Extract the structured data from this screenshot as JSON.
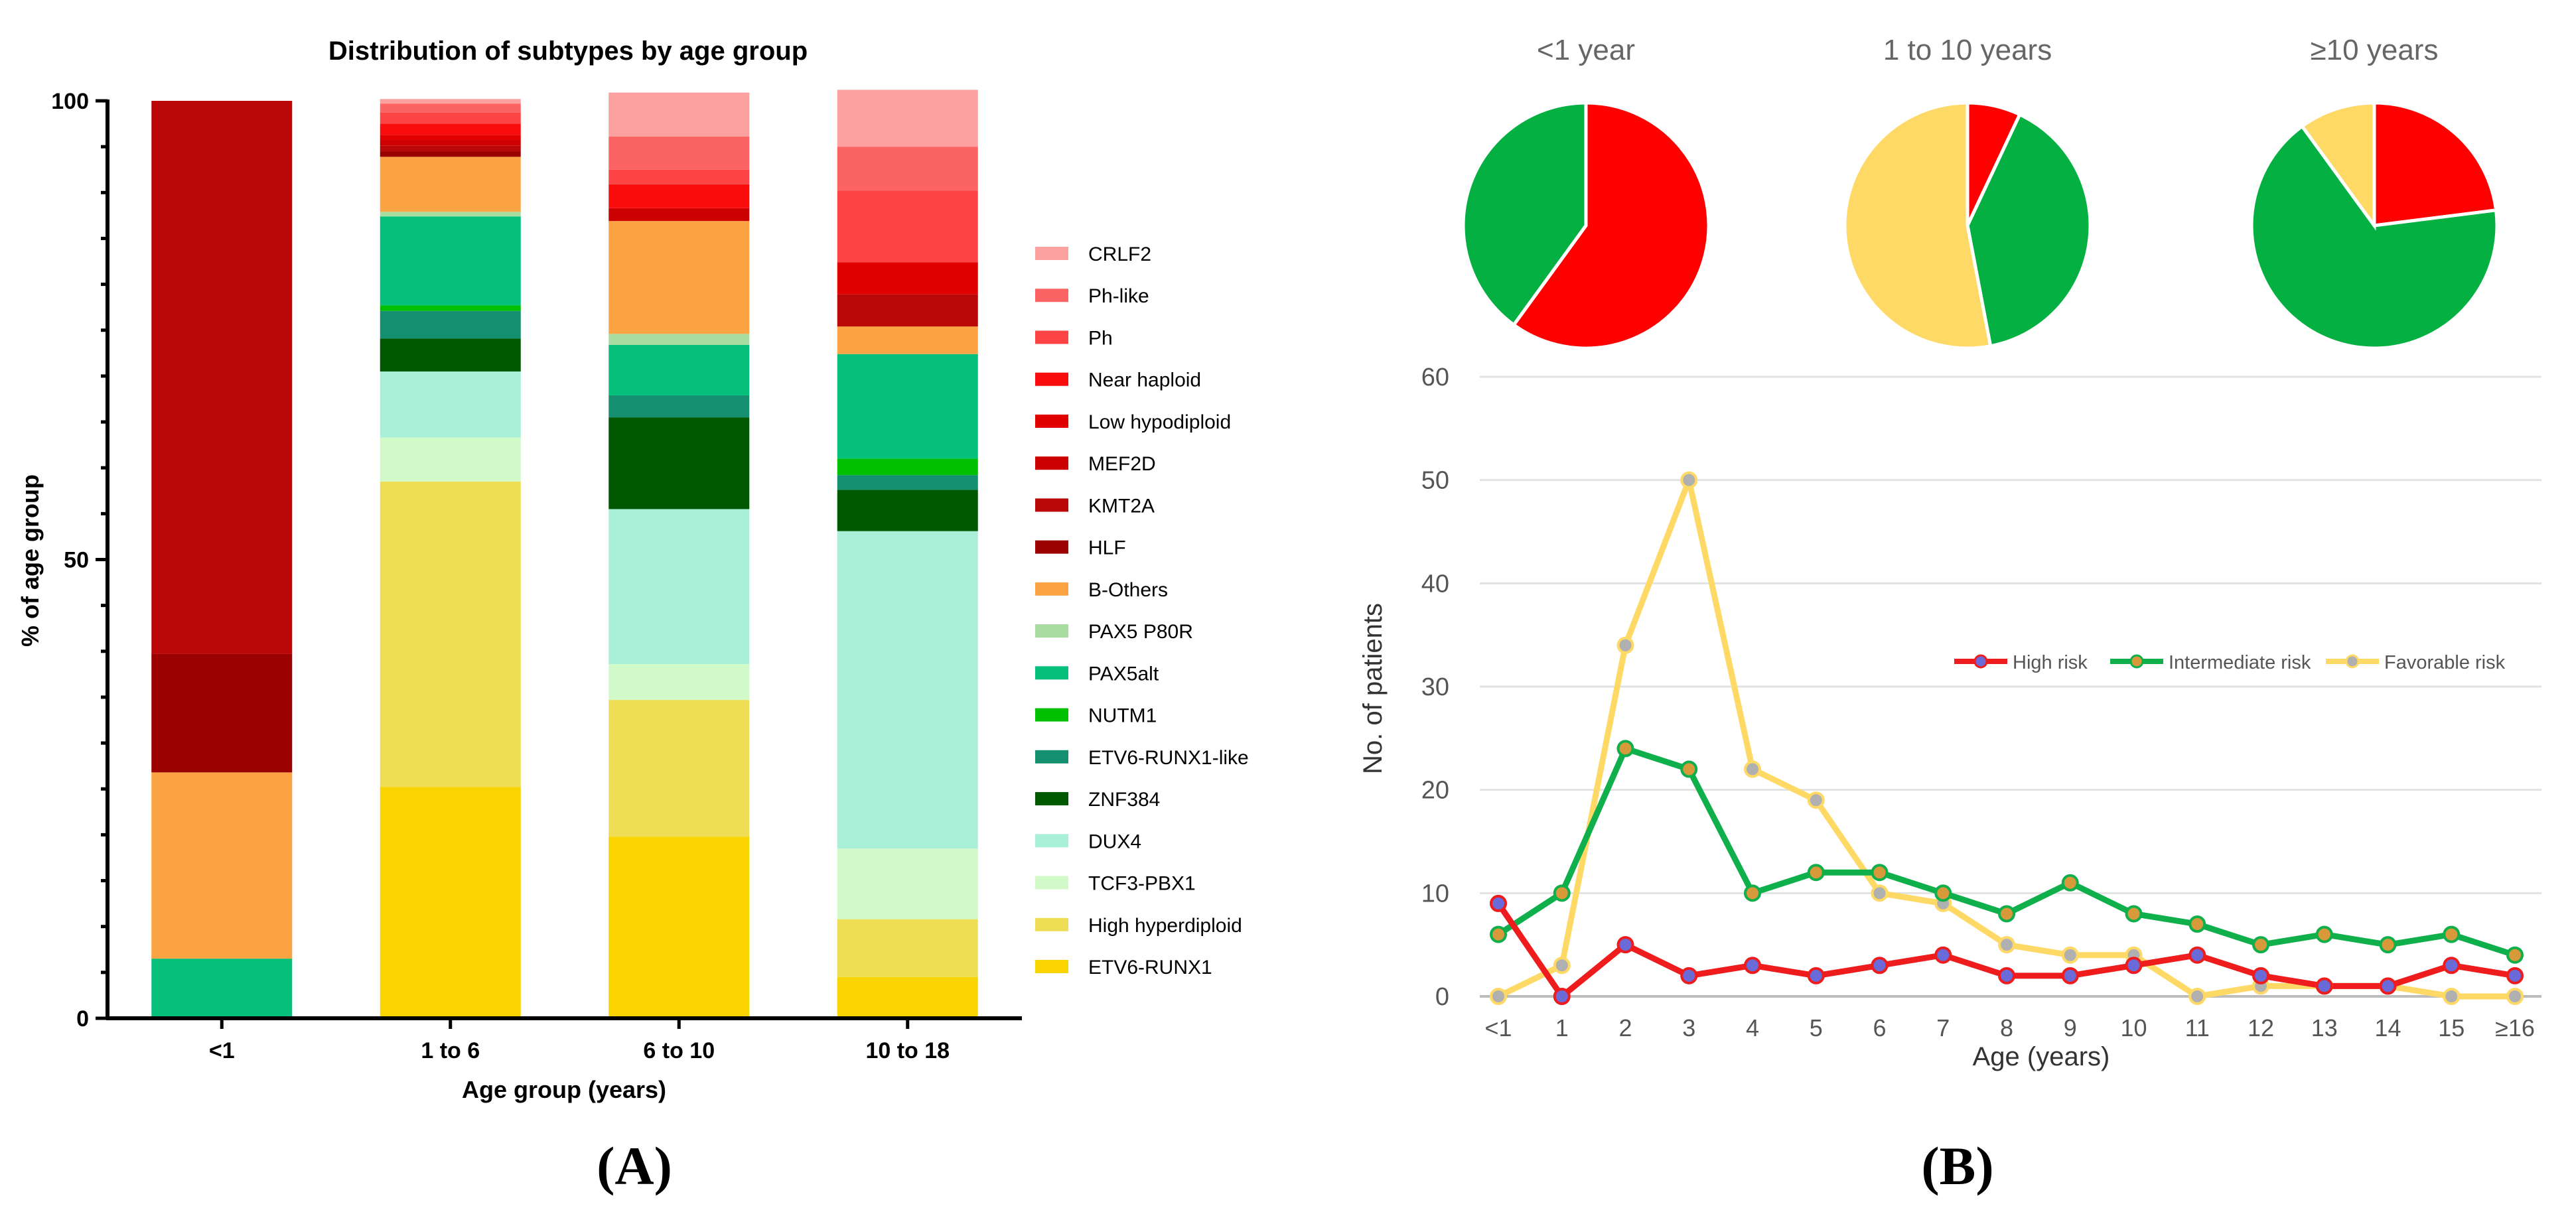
{
  "figure": {
    "panel_labels": [
      "(A)",
      "(B)"
    ]
  },
  "chart_data": [
    {
      "type": "bar",
      "stacked": true,
      "title": "Distribution of subtypes by age group",
      "xlabel": "Age group (years)",
      "ylabel": "% of age group",
      "ylim": [
        0,
        100
      ],
      "yticks": [
        0,
        50,
        100
      ],
      "categories": [
        "<1",
        "1 to 6",
        "6 to 10",
        "10 to 18"
      ],
      "legend_position": "right",
      "series": [
        {
          "name": "ETV6-RUNX1",
          "color": "#F9D400",
          "values": [
            0,
            25.2,
            19.8,
            4.5
          ]
        },
        {
          "name": "High hyperdiploid",
          "color": "#EEDD55",
          "values": [
            0,
            33.3,
            14.9,
            6.3
          ]
        },
        {
          "name": "TCF3-PBX1",
          "color": "#D2FAC8",
          "values": [
            0,
            4.8,
            3.9,
            7.7
          ]
        },
        {
          "name": "DUX4",
          "color": "#A8F0D8",
          "values": [
            0,
            7.2,
            16.9,
            34.6
          ]
        },
        {
          "name": "ZNF384",
          "color": "#005800",
          "values": [
            0,
            3.6,
            10.0,
            4.5
          ]
        },
        {
          "name": "ETV6-RUNX1-like",
          "color": "#149070",
          "values": [
            0,
            3.0,
            2.4,
            1.6
          ]
        },
        {
          "name": "NUTM1",
          "color": "#00C000",
          "values": [
            0,
            0.6,
            0,
            1.8
          ]
        },
        {
          "name": "PAX5alt",
          "color": "#05C07A",
          "values": [
            6.5,
            9.7,
            5.5,
            11.4
          ]
        },
        {
          "name": "PAX5 P80R",
          "color": "#A8DCA0",
          "values": [
            0,
            0.5,
            1.2,
            0
          ]
        },
        {
          "name": "B-Others",
          "color": "#FCA444",
          "values": [
            20.3,
            6.0,
            12.3,
            3.0
          ]
        },
        {
          "name": "HLF",
          "color": "#9A0000",
          "values": [
            12.9,
            0.6,
            0,
            0
          ]
        },
        {
          "name": "KMT2A",
          "color": "#BA0808",
          "values": [
            60.3,
            0.6,
            0,
            3.5
          ]
        },
        {
          "name": "MEF2D",
          "color": "#CC0000",
          "values": [
            0,
            0.6,
            1.4,
            0
          ]
        },
        {
          "name": "Low hypodiploid",
          "color": "#E00000",
          "values": [
            0,
            0.6,
            0,
            3.5
          ]
        },
        {
          "name": "Near haploid",
          "color": "#F80C0C",
          "values": [
            0,
            1.2,
            2.6,
            0
          ]
        },
        {
          "name": "Ph",
          "color": "#FC4444",
          "values": [
            0,
            1.2,
            1.6,
            7.8
          ]
        },
        {
          "name": "Ph-like",
          "color": "#FC6464",
          "values": [
            0,
            1.0,
            3.6,
            4.8
          ]
        },
        {
          "name": "CRLF2",
          "color": "#FCA0A0",
          "values": [
            0,
            0.5,
            4.8,
            6.2
          ]
        }
      ]
    },
    {
      "type": "pie",
      "title": "<1 year",
      "slices": [
        {
          "name": "High risk",
          "color": "#FE0000",
          "value": 60
        },
        {
          "name": "Intermediate risk",
          "color": "#05B043",
          "value": 40
        }
      ]
    },
    {
      "type": "pie",
      "title": "1 to 10 years",
      "slices": [
        {
          "name": "High risk",
          "color": "#FE0000",
          "value": 7
        },
        {
          "name": "Intermediate risk",
          "color": "#05B043",
          "value": 40
        },
        {
          "name": "Favorable risk",
          "color": "#FFD966",
          "value": 53
        }
      ]
    },
    {
      "type": "pie",
      "title": "≥10 years",
      "slices": [
        {
          "name": "High risk",
          "color": "#FE0000",
          "value": 23
        },
        {
          "name": "Intermediate risk",
          "color": "#05B043",
          "value": 67
        },
        {
          "name": "Favorable risk",
          "color": "#FFD966",
          "value": 10
        }
      ]
    },
    {
      "type": "line",
      "xlabel": "Age (years)",
      "ylabel": "No. of patients",
      "ylim": [
        0,
        60
      ],
      "yticks": [
        0,
        10,
        20,
        30,
        40,
        50,
        60
      ],
      "x": [
        "<1",
        "1",
        "2",
        "3",
        "4",
        "5",
        "6",
        "7",
        "8",
        "9",
        "10",
        "11",
        "12",
        "13",
        "14",
        "15",
        "≥16"
      ],
      "grid": true,
      "legend_position": "middle-right",
      "series": [
        {
          "name": "High risk",
          "color": "#EE1C1C",
          "marker": "#6A6AD8",
          "values": [
            9,
            0,
            5,
            2,
            3,
            2,
            3,
            4,
            2,
            2,
            3,
            4,
            2,
            1,
            1,
            3,
            2
          ]
        },
        {
          "name": "Intermediate risk",
          "color": "#0FAF4B",
          "marker": "#D8993A",
          "values": [
            6,
            10,
            24,
            22,
            10,
            12,
            12,
            10,
            8,
            11,
            8,
            7,
            5,
            6,
            5,
            6,
            4
          ]
        },
        {
          "name": "Favorable risk",
          "color": "#FFD966",
          "marker": "#B0B0B0",
          "values": [
            0,
            3,
            34,
            50,
            22,
            19,
            10,
            9,
            5,
            4,
            4,
            0,
            1,
            1,
            1,
            0,
            0
          ]
        }
      ]
    }
  ]
}
